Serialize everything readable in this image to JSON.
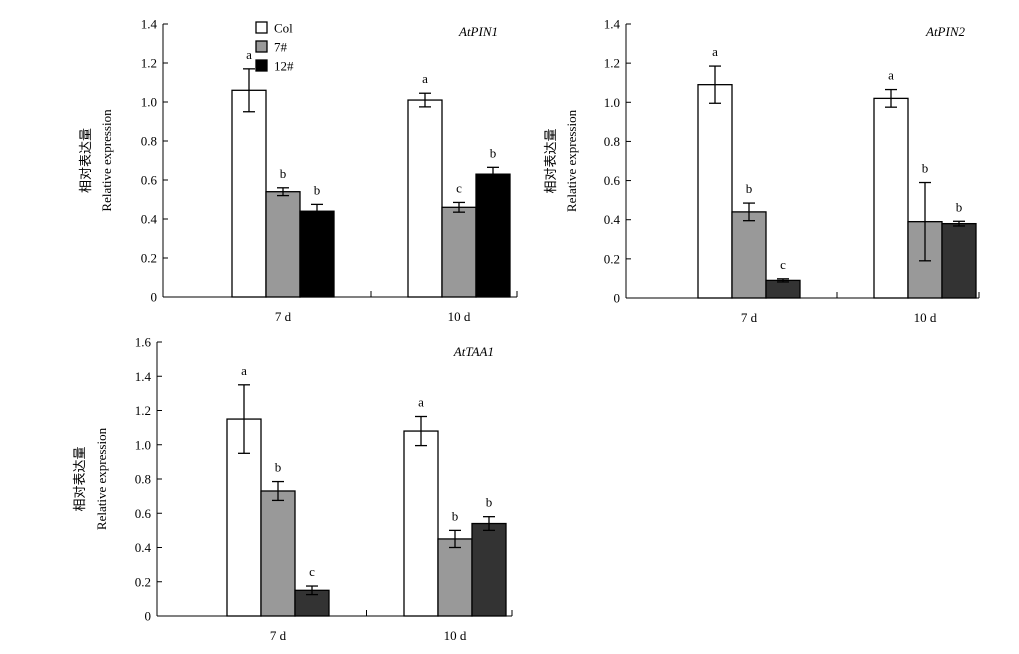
{
  "chart_data": [
    {
      "type": "bar",
      "title": "AtPIN1",
      "ylabel_cn": "相对表达量",
      "ylabel": "Relative expression",
      "categories": [
        "7 d",
        "10 d"
      ],
      "ylim": [
        0,
        1.4
      ],
      "yticks": [
        "0",
        "0.2",
        "0.4",
        "0.6",
        "0.8",
        "1.0",
        "1.2",
        "1.4"
      ],
      "legend": {
        "placement": "top-left",
        "entries": [
          "Col",
          "7#",
          "12#"
        ]
      },
      "series": [
        {
          "name": "Col",
          "color": "#ffffff",
          "values": [
            1.06,
            1.01
          ],
          "errors": [
            0.11,
            0.035
          ],
          "letters": [
            "a",
            "a"
          ]
        },
        {
          "name": "7#",
          "color": "#999999",
          "values": [
            0.54,
            0.46
          ],
          "errors": [
            0.02,
            0.025
          ],
          "letters": [
            "b",
            "c"
          ]
        },
        {
          "name": "12#",
          "color": "#000000",
          "values": [
            0.44,
            0.63
          ],
          "errors": [
            0.035,
            0.035
          ],
          "letters": [
            "b",
            "b"
          ]
        }
      ]
    },
    {
      "type": "bar",
      "title": "AtPIN2",
      "ylabel_cn": "相对表达量",
      "ylabel": "Relative expression",
      "categories": [
        "7 d",
        "10 d"
      ],
      "ylim": [
        0,
        1.4
      ],
      "yticks": [
        "0",
        "0.2",
        "0.4",
        "0.6",
        "0.8",
        "1.0",
        "1.2",
        "1.4"
      ],
      "series": [
        {
          "name": "Col",
          "color": "#ffffff",
          "values": [
            1.09,
            1.02
          ],
          "errors": [
            0.095,
            0.045
          ],
          "letters": [
            "a",
            "a"
          ]
        },
        {
          "name": "7#",
          "color": "#999999",
          "values": [
            0.44,
            0.39
          ],
          "errors": [
            0.045,
            0.2
          ],
          "letters": [
            "b",
            "b"
          ]
        },
        {
          "name": "12#",
          "color": "#333333",
          "values": [
            0.09,
            0.38
          ],
          "errors": [
            0.008,
            0.012
          ],
          "letters": [
            "c",
            "b"
          ]
        }
      ]
    },
    {
      "type": "bar",
      "title": "AtTAA1",
      "ylabel_cn": "相对表达量",
      "ylabel": "Relative expression",
      "categories": [
        "7 d",
        "10 d"
      ],
      "ylim": [
        0,
        1.6
      ],
      "yticks": [
        "0",
        "0.2",
        "0.4",
        "0.6",
        "0.8",
        "1.0",
        "1.2",
        "1.4",
        "1.6"
      ],
      "series": [
        {
          "name": "Col",
          "color": "#ffffff",
          "values": [
            1.15,
            1.08
          ],
          "errors": [
            0.2,
            0.085
          ],
          "letters": [
            "a",
            "a"
          ]
        },
        {
          "name": "7#",
          "color": "#999999",
          "values": [
            0.73,
            0.45
          ],
          "errors": [
            0.055,
            0.05
          ],
          "letters": [
            "b",
            "b"
          ]
        },
        {
          "name": "12#",
          "color": "#333333",
          "values": [
            0.15,
            0.54
          ],
          "errors": [
            0.025,
            0.04
          ],
          "letters": [
            "c",
            "b"
          ]
        }
      ]
    }
  ]
}
